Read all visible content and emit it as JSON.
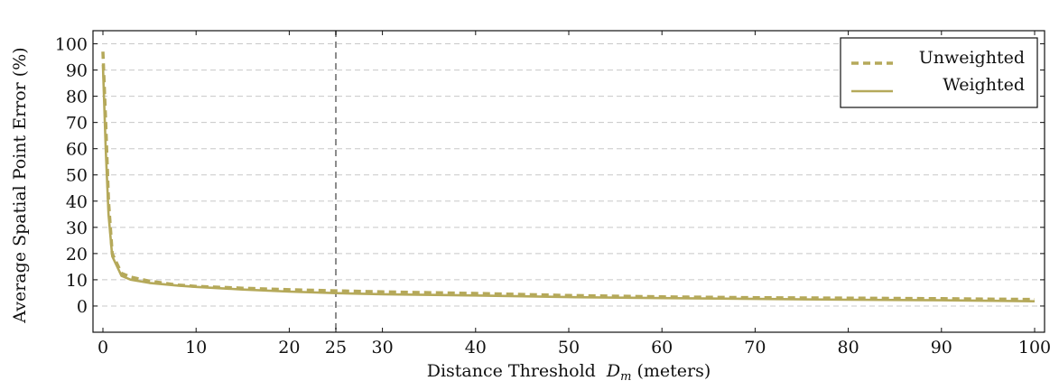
{
  "chart_data": {
    "type": "line",
    "title": "",
    "xlabel": "Distance Threshold",
    "xlabel_symbol": "D",
    "xlabel_subscript": "m",
    "xlabel_unit": "(meters)",
    "ylabel": "Average Spatial Point Error (%)",
    "xlim": [
      0,
      100
    ],
    "ylim": [
      -10,
      105
    ],
    "x_ticks": [
      "0",
      "10",
      "20",
      "25",
      "30",
      "40",
      "50",
      "60",
      "70",
      "80",
      "90",
      "100"
    ],
    "y_ticks": [
      "0",
      "10",
      "20",
      "30",
      "40",
      "50",
      "60",
      "70",
      "80",
      "90",
      "100"
    ],
    "grid": "horizontal-dashed",
    "reference_line_x": 25,
    "legend_position": "top-right",
    "colors": {
      "series": "#b5a95a",
      "reference": "#8c8c8c",
      "grid": "#c8c8c8"
    },
    "series": [
      {
        "name": "Unweighted",
        "style": "dashed",
        "x": [
          0,
          0.3,
          0.6,
          1,
          2,
          3,
          5,
          8,
          10,
          15,
          20,
          25,
          30,
          40,
          50,
          60,
          70,
          80,
          90,
          100
        ],
        "y": [
          97,
          70,
          40,
          20,
          12.5,
          11,
          9.5,
          8,
          7.5,
          6.8,
          6.2,
          5.8,
          5.4,
          4.8,
          4.0,
          3.5,
          3.2,
          3.0,
          2.8,
          2.5
        ]
      },
      {
        "name": "Weighted",
        "style": "solid",
        "x": [
          0,
          0.3,
          0.6,
          1,
          2,
          3,
          5,
          8,
          10,
          15,
          20,
          25,
          30,
          40,
          50,
          60,
          70,
          80,
          90,
          100
        ],
        "y": [
          92,
          60,
          35,
          19,
          11.5,
          10,
          8.8,
          7.8,
          7.3,
          6.3,
          5.5,
          4.9,
          4.5,
          4.0,
          3.4,
          3.0,
          2.7,
          2.4,
          2.2,
          1.8
        ]
      }
    ]
  }
}
